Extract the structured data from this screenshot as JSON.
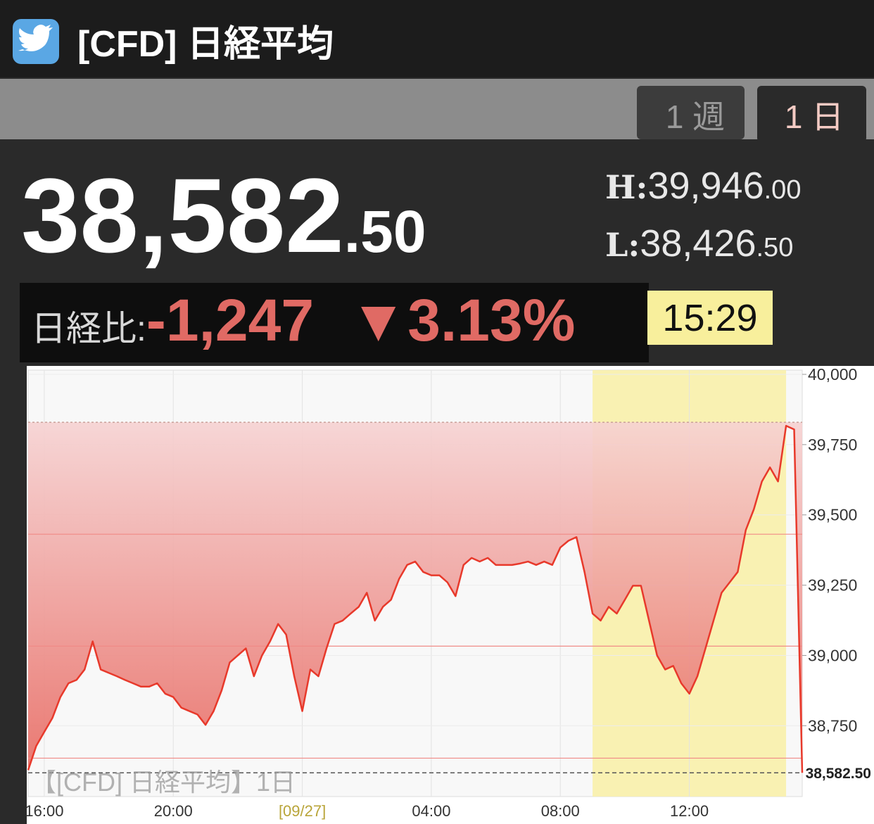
{
  "header": {
    "title": "[CFD] 日経平均"
  },
  "tabs": [
    "1 週",
    "1 日"
  ],
  "quote": {
    "price_int": "38,582",
    "price_dec": ".50",
    "high_label": "H:",
    "high_int": "39,946",
    "high_dec": ".00",
    "low_label": "L:",
    "low_int": "38,426",
    "low_dec": ".50",
    "change_label": "日経比:",
    "change": "-1,247",
    "change_pct": "▼3.13%",
    "time": "15:29"
  },
  "chart_data": {
    "type": "line",
    "watermark": "【[CFD] 日経平均】1日",
    "color": "#e8392b",
    "values": [
      38592,
      38678,
      38728,
      38777,
      38852,
      38901,
      38913,
      38950,
      39050,
      38950,
      38938,
      38926,
      38913,
      38901,
      38889,
      38889,
      38901,
      38864,
      38852,
      38814,
      38802,
      38790,
      38753,
      38802,
      38876,
      38975,
      39000,
      39025,
      38926,
      39000,
      39050,
      39112,
      39074,
      38926,
      38802,
      38950,
      38926,
      39025,
      39112,
      39124,
      39149,
      39173,
      39223,
      39124,
      39173,
      39198,
      39272,
      39322,
      39334,
      39297,
      39285,
      39285,
      39260,
      39211,
      39322,
      39347,
      39334,
      39347,
      39322,
      39322,
      39322,
      39327,
      39334,
      39322,
      39334,
      39322,
      39384,
      39408,
      39421,
      39297,
      39149,
      39124,
      39173,
      39149,
      39198,
      39248,
      39248,
      39124,
      39000,
      38950,
      38963,
      38901,
      38864,
      38926,
      39025,
      39124,
      39223,
      39260,
      39297,
      39446,
      39520,
      39619,
      39669,
      39619,
      39817,
      39804,
      38582.5
    ],
    "xlim": [
      0,
      96
    ],
    "xticks": [
      {
        "value": 2,
        "label": "16:00"
      },
      {
        "value": 18,
        "label": "20:00"
      },
      {
        "value": 34,
        "label": "[09/27]"
      },
      {
        "value": 50,
        "label": "04:00"
      },
      {
        "value": 66,
        "label": "08:00"
      },
      {
        "value": 82,
        "label": "12:00"
      }
    ],
    "ylim": [
      38498,
      40015
    ],
    "yticks": [
      {
        "value": 38750,
        "label": "38,750"
      },
      {
        "value": 39000,
        "label": "39,000"
      },
      {
        "value": 39250,
        "label": "39,250"
      },
      {
        "value": 39500,
        "label": "39,500"
      },
      {
        "value": 39750,
        "label": "39,750"
      },
      {
        "value": 40000,
        "label": "40,000"
      }
    ],
    "prev_close": 39829.5,
    "ref_lines": [
      39431.2,
      39033.0,
      38634.6
    ],
    "last": {
      "value": 38582.5,
      "label": "38,582.50"
    },
    "highlight": [
      70,
      94
    ],
    "grid": true
  }
}
